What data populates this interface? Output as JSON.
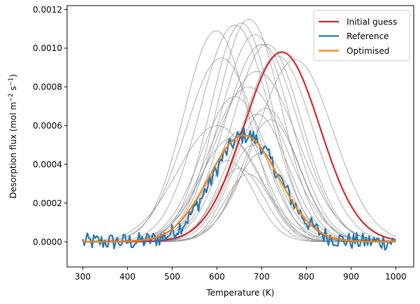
{
  "chart_data": {
    "type": "line",
    "title": "",
    "xlabel": "Temperature (K)",
    "ylabel": {
      "prefix": "Desorption flux (mol m",
      "exp1": "−2",
      "mid": " s",
      "exp2": "−1",
      "suffix": ")"
    },
    "xlim": [
      265,
      1040
    ],
    "ylim": [
      -0.00013,
      0.00122
    ],
    "xticks": [
      300,
      400,
      500,
      600,
      700,
      800,
      900,
      1000
    ],
    "xtick_labels": [
      "300",
      "400",
      "500",
      "600",
      "700",
      "800",
      "900",
      "1000"
    ],
    "yticks": [
      0,
      0.0002,
      0.0004,
      0.0006,
      0.0008,
      0.001,
      0.0012
    ],
    "ytick_labels": [
      "0.0000",
      "0.0002",
      "0.0004",
      "0.0006",
      "0.0008",
      "0.0010",
      "0.0012"
    ],
    "grid": false,
    "legend_position": "top-right",
    "x_range": [
      300,
      1000
    ],
    "series": [
      {
        "name": "Initial guess",
        "color": "#d62728",
        "model": "gaussian",
        "amp": 0.00098,
        "center": 745,
        "sigma": 85
      },
      {
        "name": "Reference",
        "color": "#1f77b4",
        "model": "noisy-gaussian",
        "amp": 0.00055,
        "center": 665,
        "sigma": 75,
        "noise": 2.5e-05
      },
      {
        "name": "Optimised",
        "color": "#ff7f0e",
        "model": "gaussian",
        "amp": 0.00055,
        "center": 660,
        "sigma": 78
      }
    ],
    "background_curves": {
      "color": "#8c8c8c",
      "model": "gaussian",
      "params": [
        {
          "amp": 0.00109,
          "center": 598,
          "sigma": 72
        },
        {
          "amp": 0.00095,
          "center": 610,
          "sigma": 80
        },
        {
          "amp": 0.00112,
          "center": 640,
          "sigma": 78
        },
        {
          "amp": 0.00113,
          "center": 655,
          "sigma": 70
        },
        {
          "amp": 0.00115,
          "center": 672,
          "sigma": 72
        },
        {
          "amp": 0.00107,
          "center": 685,
          "sigma": 78
        },
        {
          "amp": 0.00102,
          "center": 700,
          "sigma": 82
        },
        {
          "amp": 0.00102,
          "center": 712,
          "sigma": 78
        },
        {
          "amp": 0.00096,
          "center": 735,
          "sigma": 80
        },
        {
          "amp": 0.00094,
          "center": 775,
          "sigma": 85
        },
        {
          "amp": 0.00088,
          "center": 690,
          "sigma": 90
        },
        {
          "amp": 0.0008,
          "center": 670,
          "sigma": 85
        },
        {
          "amp": 0.00075,
          "center": 640,
          "sigma": 75
        },
        {
          "amp": 0.00069,
          "center": 710,
          "sigma": 70
        },
        {
          "amp": 0.00066,
          "center": 690,
          "sigma": 68
        },
        {
          "amp": 0.00063,
          "center": 720,
          "sigma": 65
        },
        {
          "amp": 0.0006,
          "center": 600,
          "sigma": 88
        },
        {
          "amp": 0.00057,
          "center": 650,
          "sigma": 60
        },
        {
          "amp": 0.00053,
          "center": 630,
          "sigma": 70
        },
        {
          "amp": 0.0005,
          "center": 680,
          "sigma": 55
        },
        {
          "amp": 0.00046,
          "center": 700,
          "sigma": 60
        },
        {
          "amp": 0.00042,
          "center": 625,
          "sigma": 58
        },
        {
          "amp": 0.00038,
          "center": 650,
          "sigma": 55
        },
        {
          "amp": 0.00035,
          "center": 670,
          "sigma": 52
        }
      ]
    }
  }
}
